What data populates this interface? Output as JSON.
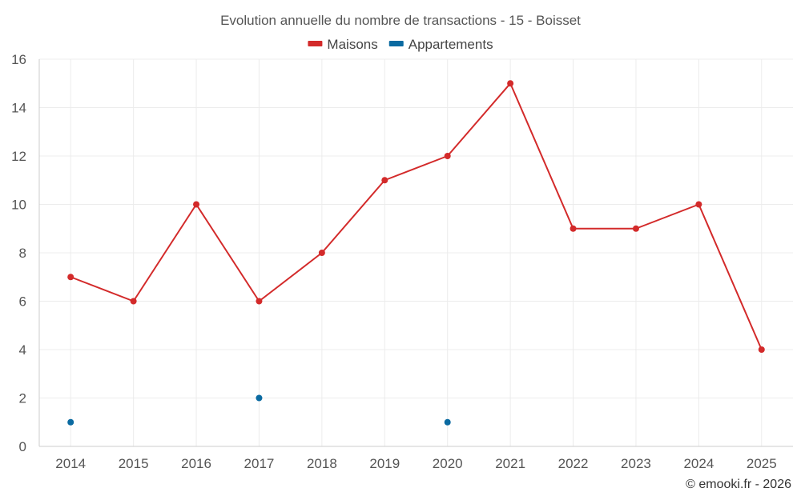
{
  "chart_data": {
    "type": "line",
    "title": "Evolution annuelle du nombre de transactions - 15 - Boisset",
    "categories": [
      "2014",
      "2015",
      "2016",
      "2017",
      "2018",
      "2019",
      "2020",
      "2021",
      "2022",
      "2023",
      "2024",
      "2025"
    ],
    "ylim": [
      0,
      16
    ],
    "yticks": [
      0,
      2,
      4,
      6,
      8,
      10,
      12,
      14,
      16
    ],
    "grid": true,
    "legend_position": "top-center",
    "series": [
      {
        "name": "Maisons",
        "color": "#d32a2a",
        "connected": true,
        "values": [
          7,
          6,
          10,
          6,
          8,
          11,
          12,
          15,
          9,
          9,
          10,
          4
        ]
      },
      {
        "name": "Appartements",
        "color": "#0a6aa1",
        "connected": false,
        "values": [
          1,
          null,
          null,
          2,
          null,
          null,
          1,
          null,
          null,
          null,
          null,
          null
        ]
      }
    ],
    "xlabel": "",
    "ylabel": ""
  },
  "credit": "© emooki.fr - 2026"
}
